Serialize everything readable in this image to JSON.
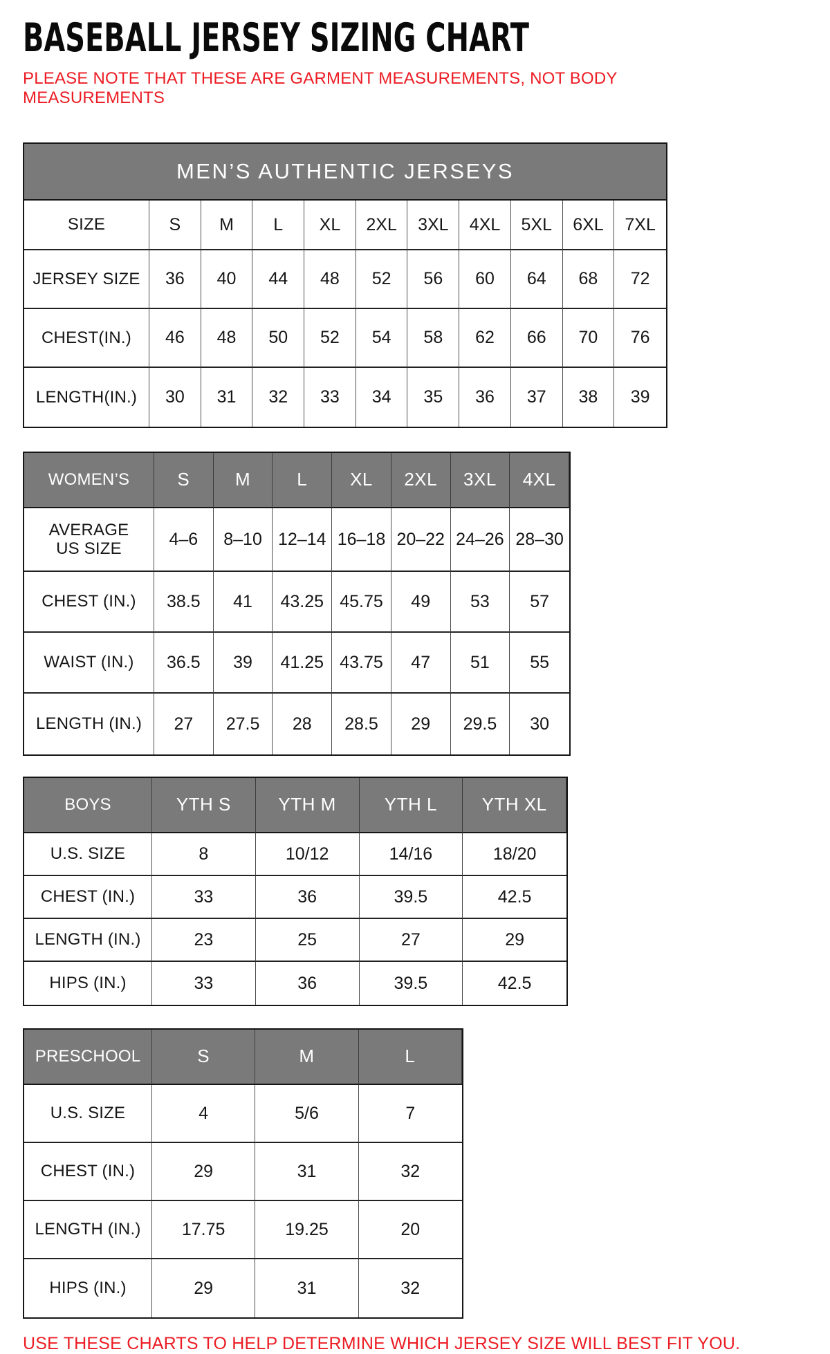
{
  "page": {
    "title": "BASEBALL JERSEY SIZING CHART",
    "note": "PLEASE NOTE THAT THESE ARE GARMENT MEASUREMENTS, NOT BODY MEASUREMENTS",
    "footer": "USE THESE CHARTS TO HELP DETERMINE WHICH JERSEY SIZE WILL BEST FIT YOU."
  },
  "colors": {
    "header_bg": "#7a7a7a",
    "header_text": "#ffffff",
    "accent_red": "#ec1c24",
    "border_dark": "#161616",
    "border_light": "#4a4a4a"
  },
  "tables": [
    {
      "id": "mens",
      "banner": "MEN’S AUTHENTIC JERSEYS",
      "columns": [
        "SIZE",
        "S",
        "M",
        "L",
        "XL",
        "2XL",
        "3XL",
        "4XL",
        "5XL",
        "6XL",
        "7XL"
      ],
      "rows": [
        {
          "label": "JERSEY SIZE",
          "values": [
            "36",
            "40",
            "44",
            "48",
            "52",
            "56",
            "60",
            "64",
            "68",
            "72"
          ]
        },
        {
          "label": "CHEST(IN.)",
          "values": [
            "46",
            "48",
            "50",
            "52",
            "54",
            "58",
            "62",
            "66",
            "70",
            "76"
          ]
        },
        {
          "label": "LENGTH(IN.)",
          "values": [
            "30",
            "31",
            "32",
            "33",
            "34",
            "35",
            "36",
            "37",
            "38",
            "39"
          ]
        }
      ]
    },
    {
      "id": "womens",
      "header_row": [
        "WOMEN’S",
        "S",
        "M",
        "L",
        "XL",
        "2XL",
        "3XL",
        "4XL"
      ],
      "rows": [
        {
          "label": "AVERAGE\nUS SIZE",
          "values": [
            "4–6",
            "8–10",
            "12–14",
            "16–18",
            "20–22",
            "24–26",
            "28–30"
          ]
        },
        {
          "label": "CHEST (IN.)",
          "values": [
            "38.5",
            "41",
            "43.25",
            "45.75",
            "49",
            "53",
            "57"
          ]
        },
        {
          "label": "WAIST (IN.)",
          "values": [
            "36.5",
            "39",
            "41.25",
            "43.75",
            "47",
            "51",
            "55"
          ]
        },
        {
          "label": "LENGTH (IN.)",
          "values": [
            "27",
            "27.5",
            "28",
            "28.5",
            "29",
            "29.5",
            "30"
          ]
        }
      ]
    },
    {
      "id": "boys",
      "header_row": [
        "BOYS",
        "YTH S",
        "YTH M",
        "YTH L",
        "YTH XL"
      ],
      "rows": [
        {
          "label": "U.S. SIZE",
          "values": [
            "8",
            "10/12",
            "14/16",
            "18/20"
          ]
        },
        {
          "label": "CHEST (IN.)",
          "values": [
            "33",
            "36",
            "39.5",
            "42.5"
          ]
        },
        {
          "label": "LENGTH (IN.)",
          "values": [
            "23",
            "25",
            "27",
            "29"
          ]
        },
        {
          "label": "HIPS (IN.)",
          "values": [
            "33",
            "36",
            "39.5",
            "42.5"
          ]
        }
      ]
    },
    {
      "id": "preschool",
      "header_row": [
        "PRESCHOOL",
        "S",
        "M",
        "L"
      ],
      "rows": [
        {
          "label": "U.S. SIZE",
          "values": [
            "4",
            "5/6",
            "7"
          ]
        },
        {
          "label": "CHEST (IN.)",
          "values": [
            "29",
            "31",
            "32"
          ]
        },
        {
          "label": "LENGTH (IN.)",
          "values": [
            "17.75",
            "19.25",
            "20"
          ]
        },
        {
          "label": "HIPS (IN.)",
          "values": [
            "29",
            "31",
            "32"
          ]
        }
      ]
    }
  ]
}
